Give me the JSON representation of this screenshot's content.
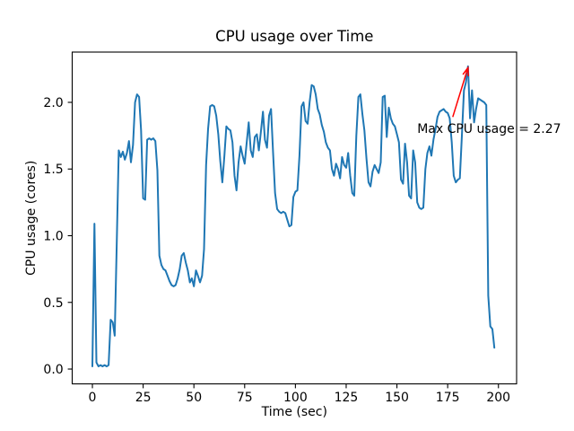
{
  "figure": {
    "title": "CPU usage over Time",
    "xlabel": "Time (sec)",
    "ylabel": "CPU usage (cores)"
  },
  "colors": {
    "line": "#1f77b4",
    "annotation": "#ff0000",
    "axes": "#000000",
    "background": "#ffffff"
  },
  "chart_data": {
    "type": "line",
    "title": "CPU usage over Time",
    "xlabel": "Time (sec)",
    "ylabel": "CPU usage (cores)",
    "grid": false,
    "legend": null,
    "xlim": [
      -9.95,
      208.95
    ],
    "ylim": [
      -0.111,
      2.377
    ],
    "x_ticks": [
      0,
      25,
      50,
      75,
      100,
      125,
      150,
      175,
      200
    ],
    "x_tick_labels": [
      "0",
      "25",
      "50",
      "75",
      "100",
      "125",
      "150",
      "175",
      "200"
    ],
    "y_ticks": [
      0.0,
      0.5,
      1.0,
      1.5,
      2.0
    ],
    "y_tick_labels": [
      "0.0",
      "0.5",
      "1.0",
      "1.5",
      "2.0"
    ],
    "x_start": 0,
    "x_step": 1,
    "values": [
      0.02,
      1.09,
      0.05,
      0.02,
      0.03,
      0.02,
      0.03,
      0.02,
      0.03,
      0.37,
      0.35,
      0.25,
      0.95,
      1.64,
      1.59,
      1.63,
      1.57,
      1.62,
      1.71,
      1.55,
      1.68,
      2.0,
      2.06,
      2.04,
      1.79,
      1.28,
      1.27,
      1.72,
      1.73,
      1.72,
      1.73,
      1.71,
      1.49,
      0.85,
      0.78,
      0.75,
      0.74,
      0.7,
      0.66,
      0.63,
      0.62,
      0.63,
      0.68,
      0.75,
      0.85,
      0.87,
      0.8,
      0.74,
      0.65,
      0.68,
      0.62,
      0.74,
      0.7,
      0.65,
      0.7,
      0.9,
      1.53,
      1.8,
      1.97,
      1.98,
      1.97,
      1.9,
      1.76,
      1.56,
      1.4,
      1.6,
      1.82,
      1.8,
      1.79,
      1.7,
      1.45,
      1.34,
      1.55,
      1.67,
      1.6,
      1.54,
      1.7,
      1.85,
      1.64,
      1.59,
      1.74,
      1.76,
      1.64,
      1.78,
      1.93,
      1.72,
      1.66,
      1.9,
      1.95,
      1.62,
      1.32,
      1.2,
      1.18,
      1.17,
      1.18,
      1.17,
      1.12,
      1.07,
      1.08,
      1.29,
      1.33,
      1.34,
      1.6,
      1.97,
      2.0,
      1.86,
      1.84,
      2.0,
      2.13,
      2.12,
      2.06,
      1.95,
      1.91,
      1.83,
      1.78,
      1.7,
      1.66,
      1.64,
      1.5,
      1.45,
      1.54,
      1.5,
      1.43,
      1.59,
      1.53,
      1.51,
      1.62,
      1.45,
      1.32,
      1.3,
      1.75,
      2.04,
      2.06,
      1.91,
      1.79,
      1.58,
      1.4,
      1.37,
      1.48,
      1.53,
      1.5,
      1.47,
      1.55,
      2.04,
      2.05,
      1.74,
      1.96,
      1.88,
      1.84,
      1.82,
      1.76,
      1.7,
      1.42,
      1.39,
      1.69,
      1.55,
      1.3,
      1.28,
      1.64,
      1.55,
      1.25,
      1.21,
      1.2,
      1.21,
      1.5,
      1.62,
      1.67,
      1.6,
      1.72,
      1.8,
      1.89,
      1.93,
      1.94,
      1.95,
      1.93,
      1.92,
      1.88,
      1.7,
      1.45,
      1.4,
      1.42,
      1.43,
      1.75,
      2.09,
      2.15,
      2.27,
      1.88,
      2.09,
      1.85,
      1.95,
      2.03,
      2.02,
      2.01,
      2.0,
      1.98,
      0.55,
      0.32,
      0.3,
      0.16
    ],
    "max_value": 2.27,
    "annotation": {
      "text": "Max CPU usage = 2.27",
      "xy": [
        185,
        2.26
      ],
      "xytext": [
        160,
        1.8
      ],
      "arrow_start": [
        177.5,
        1.89
      ]
    }
  }
}
